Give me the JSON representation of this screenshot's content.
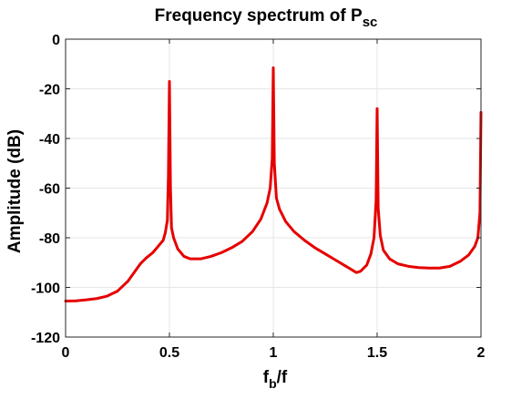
{
  "chart_data": {
    "type": "line",
    "title": "Frequency spectrum of P",
    "title_subscript": "sc",
    "xlabel": "f",
    "xlabel_subscript": "b",
    "xlabel_suffix": "/f",
    "ylabel": "Amplitude (dB)",
    "xlim": [
      0,
      2
    ],
    "ylim": [
      -120,
      0
    ],
    "x_ticks": [
      0,
      0.5,
      1,
      1.5,
      2
    ],
    "x_tick_labels": [
      "0",
      "0.5",
      "1",
      "1.5",
      "2"
    ],
    "y_ticks": [
      0,
      -20,
      -40,
      -60,
      -80,
      -100,
      -120
    ],
    "y_tick_labels": [
      "0",
      "-20",
      "-40",
      "-60",
      "-80",
      "-100",
      "-120"
    ],
    "grid": true,
    "legend": "none",
    "series": [
      {
        "color": "#e60000",
        "x": [
          0,
          0.05,
          0.1,
          0.15,
          0.2,
          0.25,
          0.3,
          0.33,
          0.36,
          0.39,
          0.42,
          0.45,
          0.47,
          0.48,
          0.49,
          0.495,
          0.5,
          0.505,
          0.51,
          0.52,
          0.54,
          0.57,
          0.6,
          0.65,
          0.7,
          0.75,
          0.8,
          0.85,
          0.9,
          0.94,
          0.97,
          0.985,
          0.995,
          1.0,
          1.005,
          1.015,
          1.03,
          1.06,
          1.1,
          1.15,
          1.2,
          1.25,
          1.3,
          1.35,
          1.38,
          1.4,
          1.42,
          1.45,
          1.47,
          1.485,
          1.495,
          1.5,
          1.505,
          1.515,
          1.53,
          1.56,
          1.6,
          1.65,
          1.7,
          1.75,
          1.8,
          1.85,
          1.9,
          1.94,
          1.97,
          1.985,
          1.995,
          2.0
        ],
        "y": [
          -105.5,
          -105.4,
          -105,
          -104.5,
          -103.5,
          -101.5,
          -97.5,
          -94,
          -90.5,
          -88,
          -86,
          -83,
          -81,
          -78,
          -73,
          -55,
          -17,
          -60,
          -76,
          -80,
          -84.5,
          -87.5,
          -88.5,
          -88.5,
          -87.5,
          -86,
          -84,
          -81.5,
          -77.5,
          -72.5,
          -66,
          -60,
          -48,
          -11.5,
          -50,
          -64,
          -68.5,
          -73.5,
          -77.5,
          -81,
          -84,
          -86.5,
          -89,
          -91.5,
          -93,
          -94,
          -93.5,
          -91,
          -86.5,
          -80,
          -65,
          -28,
          -68,
          -79,
          -85,
          -88.5,
          -90.5,
          -91.5,
          -92,
          -92.2,
          -92.2,
          -91.5,
          -89.5,
          -87,
          -83.5,
          -80,
          -70,
          -29.5
        ]
      }
    ]
  }
}
